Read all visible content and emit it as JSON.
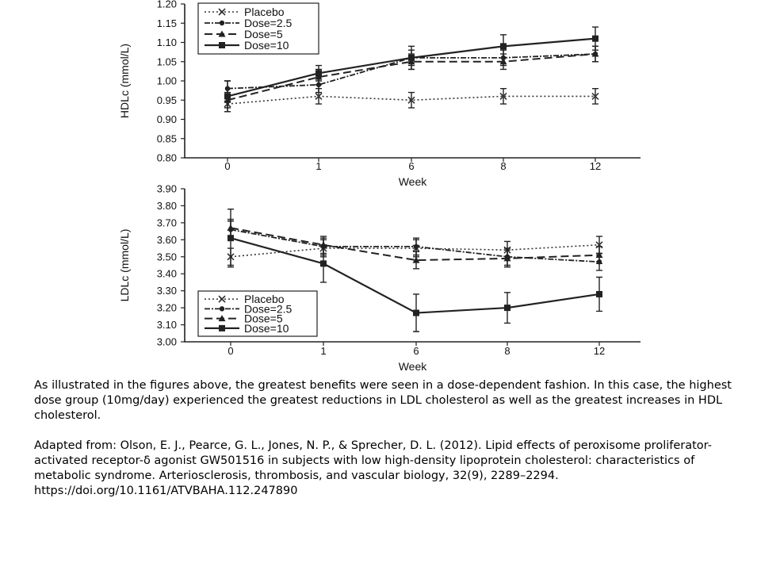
{
  "series_styles": [
    {
      "name": "Placebo",
      "dash": "2,3",
      "width": 1.6,
      "marker": "x",
      "color": "#333333"
    },
    {
      "name": "Dose=2.5",
      "dash": "7,2,2,2",
      "width": 1.8,
      "marker": "dot",
      "color": "#222222"
    },
    {
      "name": "Dose=5",
      "dash": "10,5",
      "width": 2.0,
      "marker": "triangle",
      "color": "#222222"
    },
    {
      "name": "Dose=10",
      "dash": "",
      "width": 2.2,
      "marker": "square",
      "color": "#222222"
    }
  ],
  "chart_data": [
    {
      "type": "line",
      "xlabel": "Week",
      "ylabel": "HDLc (mmol/L)",
      "categories": [
        "0",
        "1",
        "6",
        "8",
        "12"
      ],
      "ylim": [
        0.8,
        1.2
      ],
      "yticks": [
        "0.80",
        "0.85",
        "0.90",
        "0.95",
        "1.00",
        "1.05",
        "1.10",
        "1.15",
        "1.20"
      ],
      "legend_position": "top-left",
      "series": [
        {
          "name": "Placebo",
          "values": [
            0.94,
            0.96,
            0.95,
            0.96,
            0.96
          ],
          "errors": [
            0.02,
            0.02,
            0.02,
            0.02,
            0.02
          ]
        },
        {
          "name": "Dose=2.5",
          "values": [
            0.98,
            0.99,
            1.06,
            1.06,
            1.07
          ],
          "errors": [
            0.02,
            0.02,
            0.02,
            0.02,
            0.02
          ]
        },
        {
          "name": "Dose=5",
          "values": [
            0.95,
            1.01,
            1.05,
            1.05,
            1.07
          ],
          "errors": [
            0.02,
            0.02,
            0.02,
            0.02,
            0.02
          ]
        },
        {
          "name": "Dose=10",
          "values": [
            0.96,
            1.02,
            1.06,
            1.09,
            1.11
          ],
          "errors": [
            0.04,
            0.02,
            0.03,
            0.03,
            0.03
          ]
        }
      ]
    },
    {
      "type": "line",
      "xlabel": "Week",
      "ylabel": "LDLc (mmol/L)",
      "categories": [
        "0",
        "1",
        "6",
        "8",
        "12"
      ],
      "ylim": [
        3.0,
        3.9
      ],
      "yticks": [
        "3.00",
        "3.10",
        "3.20",
        "3.30",
        "3.40",
        "3.50",
        "3.60",
        "3.70",
        "3.80",
        "3.90"
      ],
      "legend_position": "bottom-left",
      "series": [
        {
          "name": "Placebo",
          "values": [
            3.5,
            3.55,
            3.55,
            3.54,
            3.57
          ],
          "errors": [
            0.05,
            0.05,
            0.05,
            0.05,
            0.05
          ]
        },
        {
          "name": "Dose=2.5",
          "values": [
            3.66,
            3.56,
            3.56,
            3.5,
            3.47
          ],
          "errors": [
            0.05,
            0.05,
            0.05,
            0.05,
            0.05
          ]
        },
        {
          "name": "Dose=5",
          "values": [
            3.67,
            3.57,
            3.48,
            3.49,
            3.51
          ],
          "errors": [
            0.05,
            0.05,
            0.05,
            0.05,
            0.05
          ]
        },
        {
          "name": "Dose=10",
          "values": [
            3.61,
            3.46,
            3.17,
            3.2,
            3.28
          ],
          "errors": [
            0.17,
            0.11,
            0.11,
            0.09,
            0.1
          ]
        }
      ]
    }
  ],
  "caption": {
    "main": "As illustrated in the figures above, the greatest benefits were seen in a dose-dependent fashion. In this case, the highest dose group (10mg/day) experienced the greatest reductions in LDL cholesterol as well as the greatest increases in HDL cholesterol.",
    "source": "Adapted from: Olson, E. J., Pearce, G. L., Jones, N. P., & Sprecher, D. L. (2012). Lipid effects of peroxisome proliferator-activated receptor-δ agonist GW501516 in subjects with low high-density lipoprotein cholesterol: characteristics of metabolic syndrome. Arteriosclerosis, thrombosis, and vascular biology, 32(9), 2289–2294. https://doi.org/10.1161/ATVBAHA.112.247890"
  }
}
